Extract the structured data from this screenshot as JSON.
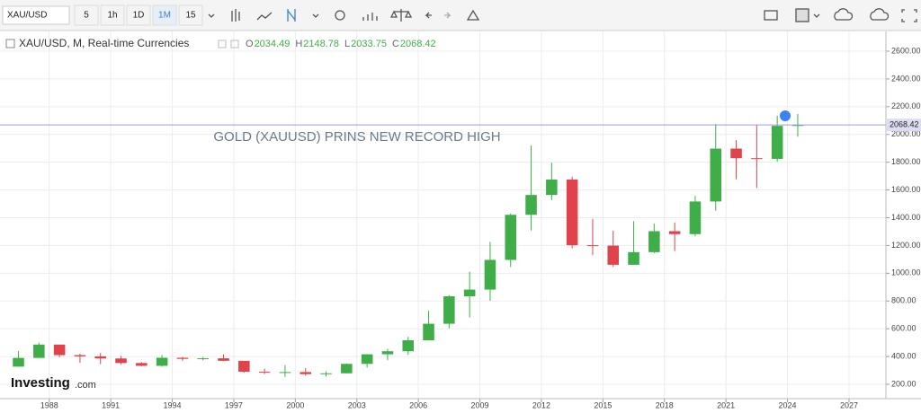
{
  "toolbar": {
    "symbol": "XAU/USD",
    "intervals": [
      "5",
      "1h",
      "1D",
      "1M",
      "15"
    ]
  },
  "header": {
    "title": "XAU/USD, M, Real-time Currencies",
    "o_label": "O",
    "o": 2034.49,
    "h_label": "H",
    "h": 2148.78,
    "l_label": "L",
    "l": 2033.75,
    "c_label": "C",
    "c": 2068.42
  },
  "logo": {
    "brand": "Investing",
    "suffix": ".com"
  },
  "chart_data": {
    "type": "candlestick",
    "annotation": "GOLD (XAUUSD) PRINS NEW RECORD HIGH",
    "x": [
      1986,
      1987,
      1988,
      1989,
      1990,
      1991,
      1992,
      1993,
      1994,
      1995,
      1996,
      1997,
      1998,
      1999,
      2000,
      2001,
      2002,
      2003,
      2004,
      2005,
      2006,
      2007,
      2008,
      2009,
      2010,
      2011,
      2012,
      2013,
      2014,
      2015,
      2016,
      2017,
      2018,
      2019,
      2020,
      2021,
      2022,
      2023,
      2024
    ],
    "open": [
      327,
      390,
      486,
      410,
      401,
      386,
      353,
      333,
      391,
      383,
      387,
      369,
      290,
      288,
      288,
      273,
      279,
      347,
      416,
      438,
      517,
      636,
      834,
      882,
      1096,
      1421,
      1564,
      1675,
      1202,
      1199,
      1061,
      1152,
      1303,
      1282,
      1517,
      1898,
      1829,
      1824,
      2062
    ],
    "high": [
      440,
      500,
      485,
      420,
      425,
      405,
      360,
      410,
      397,
      397,
      415,
      367,
      313,
      338,
      316,
      293,
      349,
      417,
      456,
      541,
      730,
      842,
      1011,
      1227,
      1431,
      1921,
      1796,
      1696,
      1392,
      1307,
      1375,
      1357,
      1366,
      1557,
      2075,
      1959,
      2070,
      2135,
      2148
    ],
    "low": [
      326,
      390,
      395,
      355,
      345,
      344,
      330,
      326,
      369,
      372,
      367,
      283,
      273,
      253,
      263,
      256,
      277,
      320,
      373,
      411,
      517,
      603,
      681,
      802,
      1045,
      1308,
      1527,
      1180,
      1132,
      1046,
      1061,
      1146,
      1160,
      1266,
      1451,
      1677,
      1614,
      1804,
      1984
    ],
    "close": [
      390,
      486,
      410,
      401,
      386,
      353,
      333,
      391,
      383,
      387,
      369,
      290,
      288,
      288,
      273,
      279,
      347,
      416,
      438,
      517,
      636,
      834,
      882,
      1096,
      1421,
      1564,
      1675,
      1202,
      1199,
      1061,
      1152,
      1303,
      1282,
      1517,
      1898,
      1829,
      1824,
      2062,
      2068
    ],
    "up_color": "#3fae49",
    "down_color": "#e0434b",
    "current_price": 2068.42,
    "xlim": [
      1985.6,
      2028.8
    ],
    "xticks": [
      1988,
      1991,
      1994,
      1997,
      2000,
      2003,
      2006,
      2009,
      2012,
      2015,
      2018,
      2021,
      2024,
      2027
    ],
    "ylim": [
      200,
      2600
    ],
    "yticks": [
      {
        "value": 200,
        "label": "200.00"
      },
      {
        "value": 400,
        "label": "400.00"
      },
      {
        "value": 600,
        "label": "600.00"
      },
      {
        "value": 800,
        "label": "800.00"
      },
      {
        "value": 1000,
        "label": "1000.00"
      },
      {
        "value": 1200,
        "label": "1200.00"
      },
      {
        "value": 1400,
        "label": "1400.00"
      },
      {
        "value": 1600,
        "label": "1600.00"
      },
      {
        "value": 1800,
        "label": "1800.00"
      },
      {
        "value": 2000,
        "label": "2000.00"
      },
      {
        "value": 2200,
        "label": "2200.00"
      },
      {
        "value": 2400,
        "label": "2400.00"
      },
      {
        "value": 2600,
        "label": "2600.00"
      }
    ],
    "grid": true
  }
}
